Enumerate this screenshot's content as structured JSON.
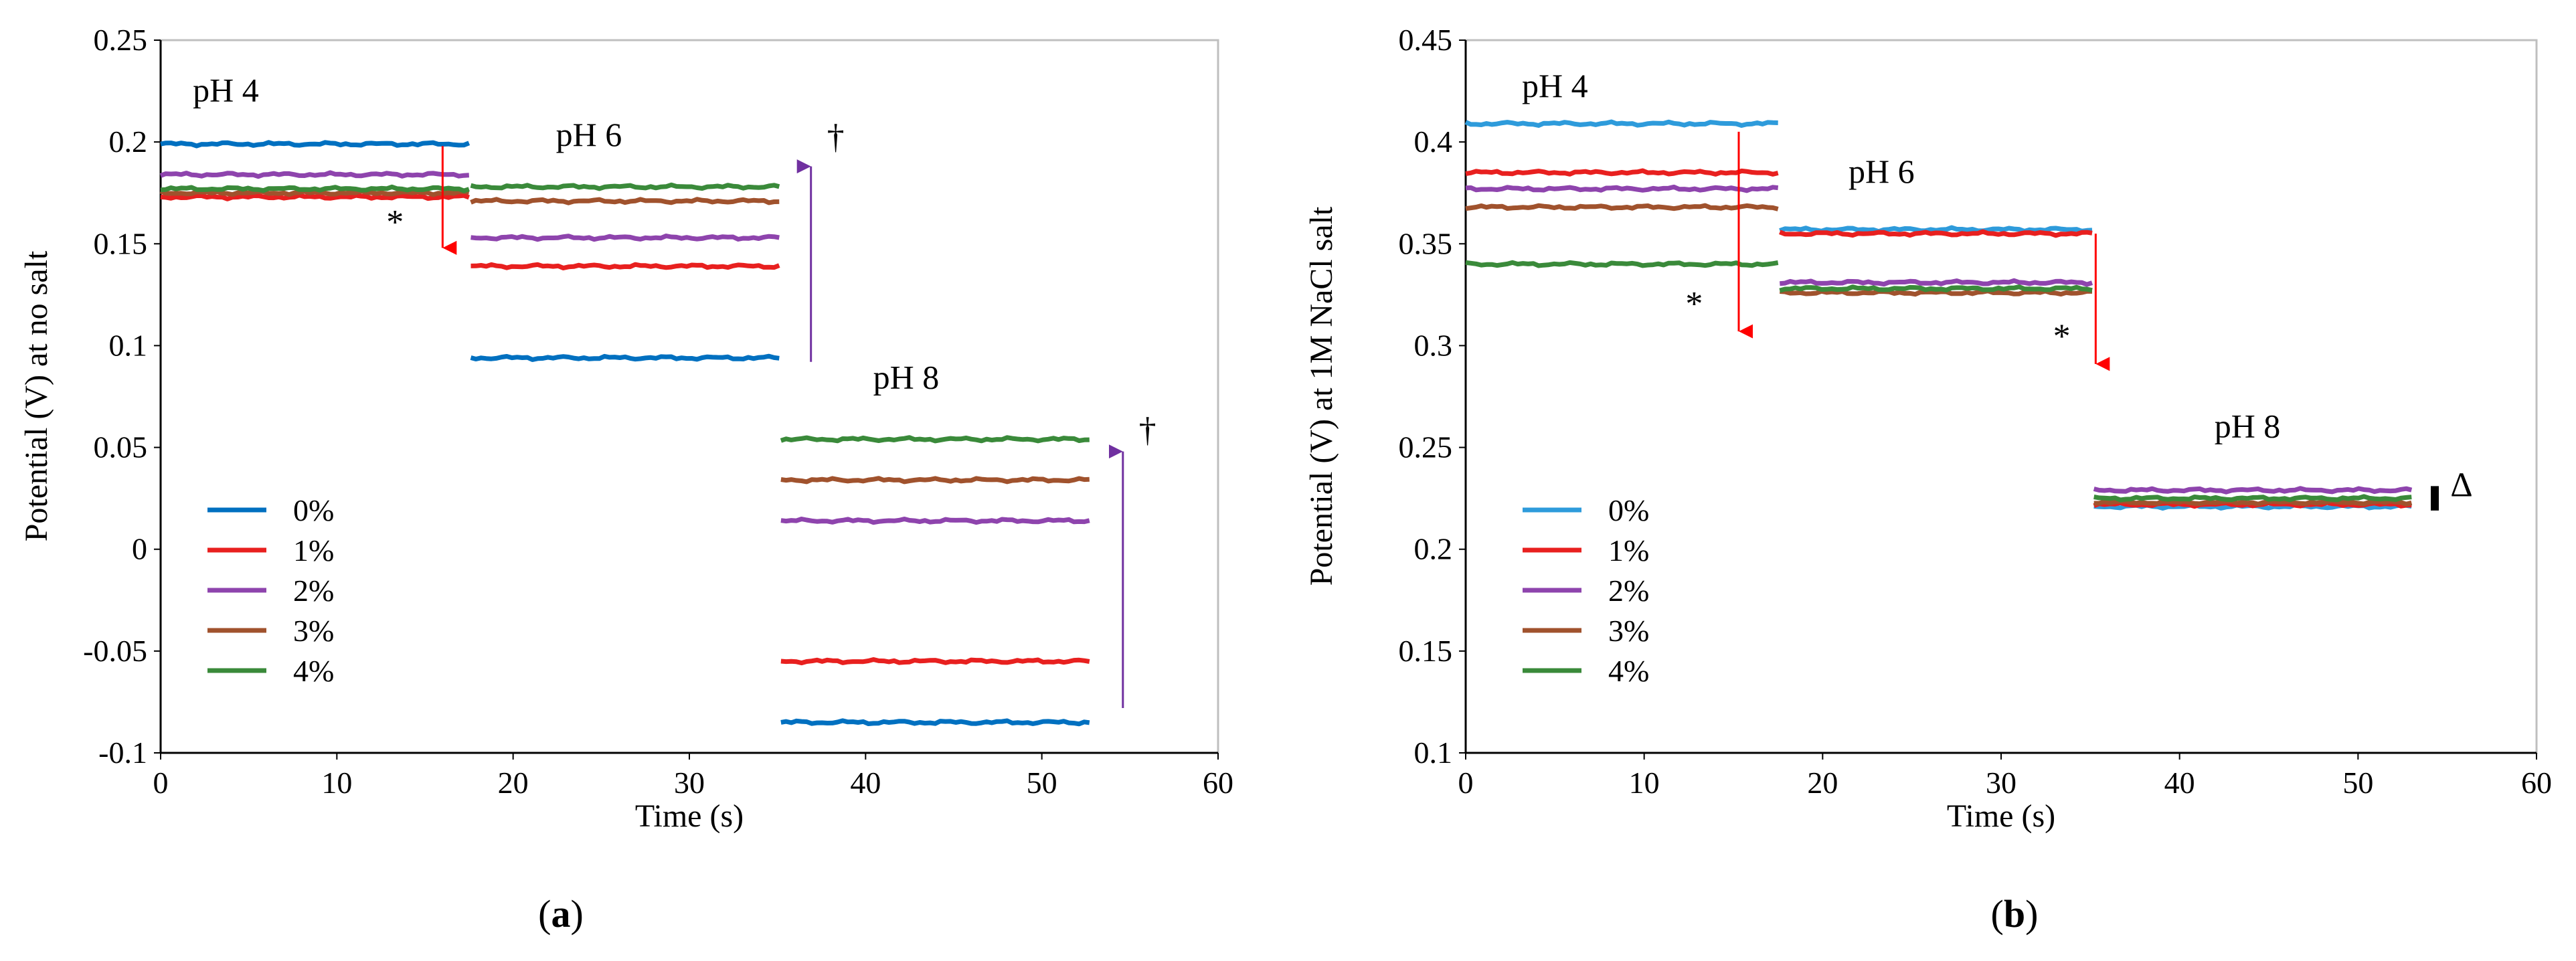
{
  "chart_data": [
    {
      "type": "line",
      "panel_label_pre": "(",
      "panel_label": "a",
      "panel_label_post": ")",
      "xlabel": "Time (s)",
      "ylabel": "Potential (V) at no salt",
      "xlim": [
        0,
        60
      ],
      "ylim": [
        -0.1,
        0.25
      ],
      "xticks": [
        0,
        10,
        20,
        30,
        40,
        50,
        60
      ],
      "yticks": [
        -0.1,
        -0.05,
        0,
        0.05,
        0.1,
        0.15,
        0.2,
        0.25
      ],
      "ytick_labels": [
        "-0.1",
        "-0.05",
        "0",
        "0.05",
        "0.1",
        "0.15",
        "0.2",
        "0.25"
      ],
      "grid": false,
      "legend_position": "lower-left",
      "segments": [
        {
          "label": "pH 4",
          "x": [
            0,
            17.5
          ]
        },
        {
          "label": "pH 6",
          "x": [
            17.6,
            35.1
          ]
        },
        {
          "label": "pH 8",
          "x": [
            35.2,
            52.7
          ]
        }
      ],
      "series": [
        {
          "name": "0%",
          "color": "#0070C0",
          "levels": [
            0.199,
            0.094,
            -0.085
          ]
        },
        {
          "name": "1%",
          "color": "#E8201F",
          "levels": [
            0.173,
            0.139,
            -0.055
          ]
        },
        {
          "name": "2%",
          "color": "#8E44AD",
          "levels": [
            0.184,
            0.153,
            0.014
          ]
        },
        {
          "name": "3%",
          "color": "#A0522D",
          "levels": [
            0.175,
            0.171,
            0.034
          ]
        },
        {
          "name": "4%",
          "color": "#3A8A3A",
          "levels": [
            0.177,
            0.178,
            0.054
          ]
        }
      ],
      "annotations": [
        {
          "text": "pH 4",
          "x": 3.7,
          "y": 0.22
        },
        {
          "text": "pH 6",
          "x": 24.3,
          "y": 0.198
        },
        {
          "text": "pH 8",
          "x": 42.3,
          "y": 0.079
        },
        {
          "text": "*",
          "x": 13.3,
          "y": 0.155
        },
        {
          "text": "†",
          "x": 38.3,
          "y": 0.197
        },
        {
          "text": "†",
          "x": 56.0,
          "y": 0.053
        }
      ],
      "arrows": [
        {
          "kind": "down",
          "color": "#FF0000",
          "x": 16.0,
          "y_from": 0.198,
          "y_to": 0.148
        },
        {
          "kind": "up",
          "color": "#7030A0",
          "x": 36.9,
          "y_from": 0.092,
          "y_to": 0.188
        },
        {
          "kind": "up",
          "color": "#7030A0",
          "x": 54.6,
          "y_from": -0.078,
          "y_to": 0.048
        }
      ]
    },
    {
      "type": "line",
      "panel_label_pre": "(",
      "panel_label": "b",
      "panel_label_post": ")",
      "xlabel": "Time (s)",
      "ylabel": "Potential (V) at 1M NaCl salt",
      "xlim": [
        0,
        60
      ],
      "ylim": [
        0.1,
        0.45
      ],
      "xticks": [
        0,
        10,
        20,
        30,
        40,
        50,
        60
      ],
      "yticks": [
        0.1,
        0.15,
        0.2,
        0.25,
        0.3,
        0.35,
        0.4,
        0.45
      ],
      "ytick_labels": [
        "0.1",
        "0.15",
        "0.2",
        "0.25",
        "0.3",
        "0.35",
        "0.4",
        "0.45"
      ],
      "grid": false,
      "legend_position": "lower-left",
      "segments": [
        {
          "label": "pH 4",
          "x": [
            0,
            17.5
          ]
        },
        {
          "label": "pH 6",
          "x": [
            17.6,
            35.1
          ]
        },
        {
          "label": "pH 8",
          "x": [
            35.2,
            53.0
          ]
        }
      ],
      "series": [
        {
          "name": "0%",
          "color": "#2E9BDB",
          "levels": [
            0.409,
            0.357,
            0.221
          ]
        },
        {
          "name": "1%",
          "color": "#E8201F",
          "levels": [
            0.385,
            0.355,
            0.222
          ]
        },
        {
          "name": "2%",
          "color": "#8E44AD",
          "levels": [
            0.377,
            0.331,
            0.229
          ]
        },
        {
          "name": "3%",
          "color": "#A0522D",
          "levels": [
            0.368,
            0.326,
            0.223
          ]
        },
        {
          "name": "4%",
          "color": "#3A8A3A",
          "levels": [
            0.34,
            0.328,
            0.225
          ]
        }
      ],
      "annotations": [
        {
          "text": "pH 4",
          "x": 5.0,
          "y": 0.422
        },
        {
          "text": "pH 6",
          "x": 23.3,
          "y": 0.38
        },
        {
          "text": "pH 8",
          "x": 43.8,
          "y": 0.255
        },
        {
          "text": "*",
          "x": 12.8,
          "y": 0.315
        },
        {
          "text": "*",
          "x": 33.4,
          "y": 0.299
        },
        {
          "text": "Δ",
          "x": 55.8,
          "y": 0.226
        }
      ],
      "arrows": [
        {
          "kind": "down",
          "color": "#FF0000",
          "x": 15.3,
          "y_from": 0.405,
          "y_to": 0.307
        },
        {
          "kind": "down",
          "color": "#FF0000",
          "x": 35.3,
          "y_from": 0.355,
          "y_to": 0.291
        }
      ],
      "brackets": [
        {
          "x": 54.3,
          "y_from": 0.219,
          "y_to": 0.231
        }
      ]
    }
  ]
}
